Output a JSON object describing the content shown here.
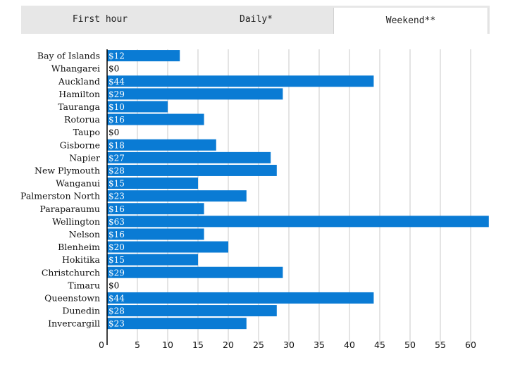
{
  "tabs": [
    {
      "label": "First hour",
      "active": false
    },
    {
      "label": "Daily*",
      "active": false
    },
    {
      "label": "Weekend**",
      "active": true
    }
  ],
  "chart_data": {
    "type": "bar",
    "orientation": "horizontal",
    "categories": [
      "Bay of Islands",
      "Whangarei",
      "Auckland",
      "Hamilton",
      "Tauranga",
      "Rotorua",
      "Taupo",
      "Gisborne",
      "Napier",
      "New Plymouth",
      "Wanganui",
      "Palmerston North",
      "Paraparaumu",
      "Wellington",
      "Nelson",
      "Blenheim",
      "Hokitika",
      "Christchurch",
      "Timaru",
      "Queenstown",
      "Dunedin",
      "Invercargill"
    ],
    "values": [
      12,
      0,
      44,
      29,
      10,
      16,
      0,
      18,
      27,
      28,
      15,
      23,
      16,
      63,
      16,
      20,
      15,
      29,
      0,
      44,
      28,
      23
    ],
    "data_labels": [
      "$12",
      "$0",
      "$44",
      "$29",
      "$10",
      "$16",
      "$0",
      "$18",
      "$27",
      "$28",
      "$15",
      "$23",
      "$16",
      "$63",
      "$16",
      "$20",
      "$15",
      "$29",
      "$0",
      "$44",
      "$28",
      "$23"
    ],
    "xticks": [
      0,
      5,
      10,
      15,
      20,
      25,
      30,
      35,
      40,
      45,
      50,
      55,
      60
    ],
    "xlim": [
      0,
      63
    ],
    "grid": true,
    "bar_color": "#0a7bd4",
    "label_color_on_bar": "#ffffff",
    "label_color_zero": "#000000"
  }
}
